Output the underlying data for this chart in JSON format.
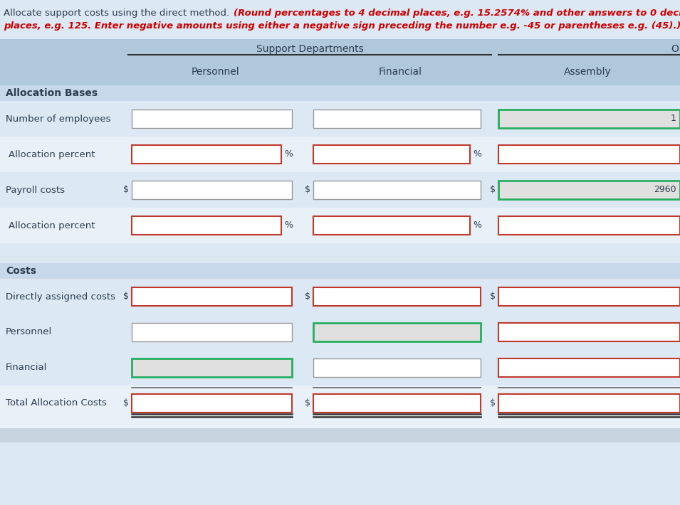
{
  "title_black": "Allocate support costs using the direct method.",
  "title_red": " (Round percentages to 4 decimal places, e.g. 15.2574% and other answers to 0 decimal\nplaces, e.g. 125. Enter negative amounts using either a negative sign preceding the number e.g. -45 or parentheses e.g. (45).)",
  "header_support": "Support Departments",
  "header_other": "O",
  "col_personnel": "Personnel",
  "col_financial": "Financial",
  "col_assembly": "Assembly",
  "section1_label": "Allocation Bases",
  "row1_label": "Number of employees",
  "row2_label": "Allocation percent",
  "row3_label": "Payroll costs",
  "row4_label": "Allocation percent",
  "section2_label": "Costs",
  "row5_label": "Directly assigned costs",
  "row6_label": "Personnel",
  "row7_label": "Financial",
  "row8_label": "Total Allocation Costs",
  "assembly_employees_value": "1",
  "assembly_payroll_value": "2960",
  "bg_color": "#dce8f3",
  "header_bg": "#b0c8dc",
  "section_bg": "#c8d8eb",
  "row_alt_bg": "#e8f0f8",
  "white_box": "#ffffff",
  "gray_box": "#e0e0e0",
  "red_border": "#c0392b",
  "green_border": "#27ae60",
  "dark_line": "#333333",
  "text_color": "#2c3e50",
  "red_text": "#cc0000",
  "gray_border": "#999999"
}
